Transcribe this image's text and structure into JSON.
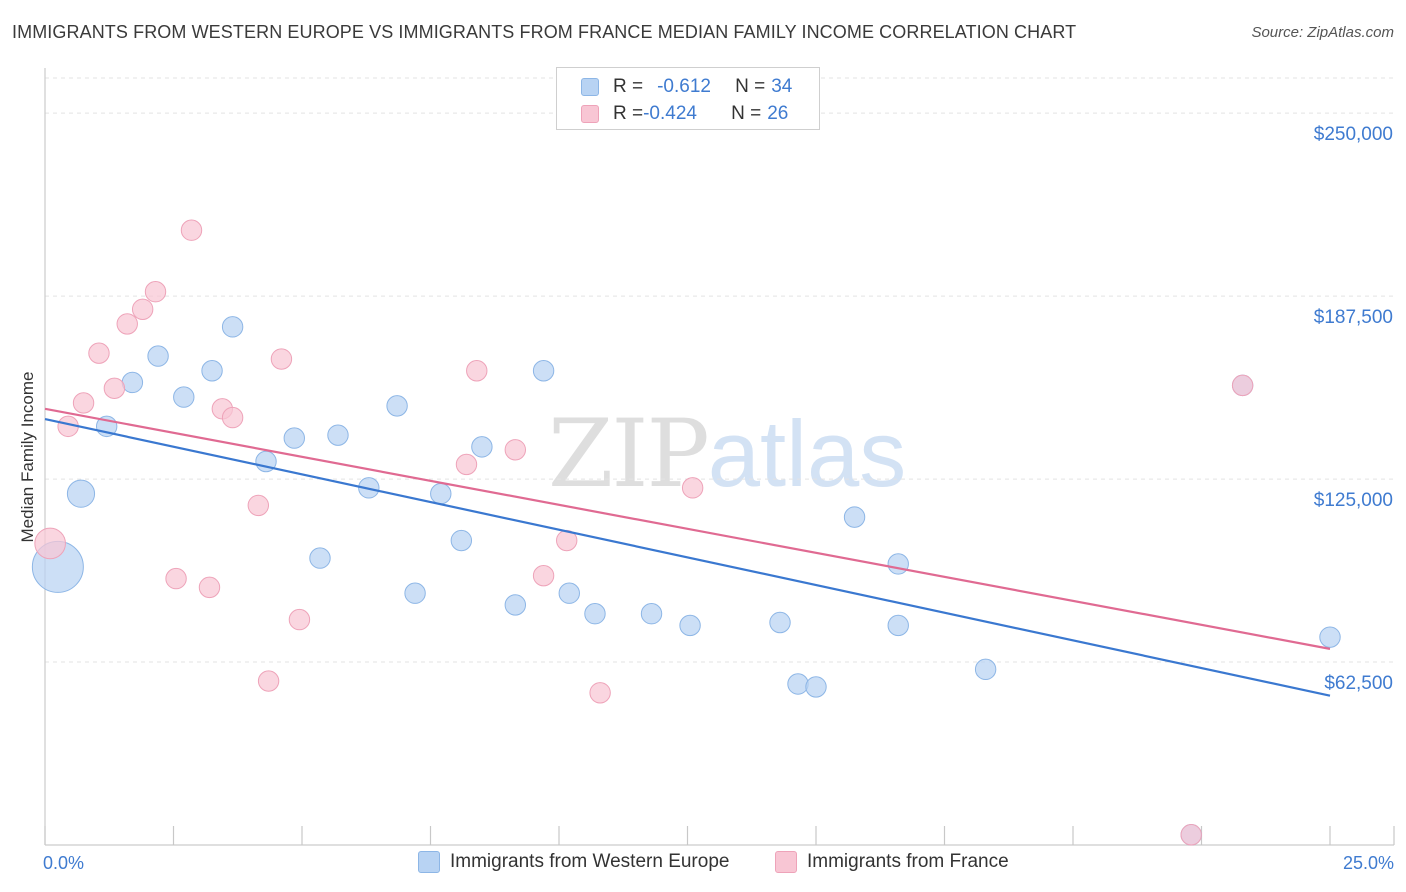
{
  "title": "IMMIGRANTS FROM WESTERN EUROPE VS IMMIGRANTS FROM FRANCE MEDIAN FAMILY INCOME CORRELATION CHART",
  "source": "Source: ZipAtlas.com",
  "watermark": {
    "zip": "ZIP",
    "atlas": "atlas"
  },
  "legend": {
    "blue": {
      "r_label": "R = ",
      "r_value": "-0.612",
      "n_label": "N = ",
      "n_value": "34"
    },
    "pink": {
      "r_label": "R = ",
      "r_value": "-0.424",
      "n_label": "N = ",
      "n_value": "26"
    }
  },
  "colors": {
    "blue_fill": "#b8d3f3",
    "blue_stroke": "#8db6e6",
    "blue_line": "#3a78d0",
    "pink_fill": "#f8c6d4",
    "pink_stroke": "#eea3b9",
    "pink_line": "#e06a92",
    "label": "#3f7bd0"
  },
  "chart_data": {
    "type": "scatter",
    "title": "IMMIGRANTS FROM WESTERN EUROPE VS IMMIGRANTS FROM FRANCE MEDIAN FAMILY INCOME CORRELATION CHART",
    "xlabel": "",
    "ylabel": "Median Family Income",
    "xlim": [
      0,
      25
    ],
    "ylim": [
      0,
      262000
    ],
    "x_tick_labels": [
      "0.0%",
      "25.0%"
    ],
    "y_ticks": [
      62500,
      125000,
      187500,
      250000
    ],
    "y_tick_labels": [
      "$62,500",
      "$125,000",
      "$187,500",
      "$250,000"
    ],
    "grid": true,
    "series": [
      {
        "name": "Immigrants from Western Europe",
        "color": "blue",
        "points": [
          [
            0.25,
            95000,
            3.0
          ],
          [
            0.7,
            120000,
            1.6
          ],
          [
            1.2,
            143000,
            1.2
          ],
          [
            1.7,
            158000,
            1.2
          ],
          [
            2.2,
            167000,
            1.2
          ],
          [
            2.7,
            153000,
            1.2
          ],
          [
            3.25,
            162000,
            1.2
          ],
          [
            3.65,
            177000,
            1.2
          ],
          [
            4.3,
            131000,
            1.2
          ],
          [
            4.85,
            139000,
            1.2
          ],
          [
            5.35,
            98000,
            1.2
          ],
          [
            5.7,
            140000,
            1.2
          ],
          [
            6.3,
            122000,
            1.2
          ],
          [
            6.85,
            150000,
            1.2
          ],
          [
            7.2,
            86000,
            1.2
          ],
          [
            7.7,
            120000,
            1.2
          ],
          [
            8.1,
            104000,
            1.2
          ],
          [
            8.5,
            136000,
            1.2
          ],
          [
            9.15,
            82000,
            1.2
          ],
          [
            9.7,
            162000,
            1.2
          ],
          [
            10.2,
            86000,
            1.2
          ],
          [
            10.7,
            79000,
            1.2
          ],
          [
            11.8,
            79000,
            1.2
          ],
          [
            12.55,
            75000,
            1.2
          ],
          [
            14.3,
            76000,
            1.2
          ],
          [
            14.65,
            55000,
            1.2
          ],
          [
            15.0,
            54000,
            1.2
          ],
          [
            15.75,
            112000,
            1.2
          ],
          [
            16.6,
            96000,
            1.2
          ],
          [
            16.6,
            75000,
            1.2
          ],
          [
            18.3,
            60000,
            1.2
          ],
          [
            22.3,
            3500,
            1.2
          ],
          [
            23.3,
            157000,
            1.2
          ],
          [
            25.0,
            71000,
            1.2
          ]
        ],
        "trend": {
          "x": [
            0,
            25
          ],
          "y": [
            145500,
            51000
          ]
        }
      },
      {
        "name": "Immigrants from France",
        "color": "pink",
        "points": [
          [
            0.1,
            103000,
            1.8
          ],
          [
            0.45,
            143000,
            1.2
          ],
          [
            0.75,
            151000,
            1.2
          ],
          [
            1.05,
            168000,
            1.2
          ],
          [
            1.35,
            156000,
            1.2
          ],
          [
            1.6,
            178000,
            1.2
          ],
          [
            1.9,
            183000,
            1.2
          ],
          [
            2.15,
            189000,
            1.2
          ],
          [
            2.55,
            91000,
            1.2
          ],
          [
            2.85,
            210000,
            1.2
          ],
          [
            3.2,
            88000,
            1.2
          ],
          [
            3.45,
            149000,
            1.2
          ],
          [
            3.65,
            146000,
            1.2
          ],
          [
            4.15,
            116000,
            1.2
          ],
          [
            4.35,
            56000,
            1.2
          ],
          [
            4.6,
            166000,
            1.2
          ],
          [
            4.95,
            77000,
            1.2
          ],
          [
            8.2,
            130000,
            1.2
          ],
          [
            8.4,
            162000,
            1.2
          ],
          [
            9.15,
            135000,
            1.2
          ],
          [
            9.7,
            92000,
            1.2
          ],
          [
            10.15,
            104000,
            1.2
          ],
          [
            10.8,
            52000,
            1.2
          ],
          [
            12.6,
            122000,
            1.2
          ],
          [
            22.3,
            3500,
            1.2
          ],
          [
            23.3,
            157000,
            1.2
          ]
        ],
        "trend": {
          "x": [
            0,
            25
          ],
          "y": [
            149000,
            67000
          ]
        }
      }
    ]
  },
  "bottom_legend": {
    "blue_label": "Immigrants from Western Europe",
    "pink_label": "Immigrants from France"
  }
}
